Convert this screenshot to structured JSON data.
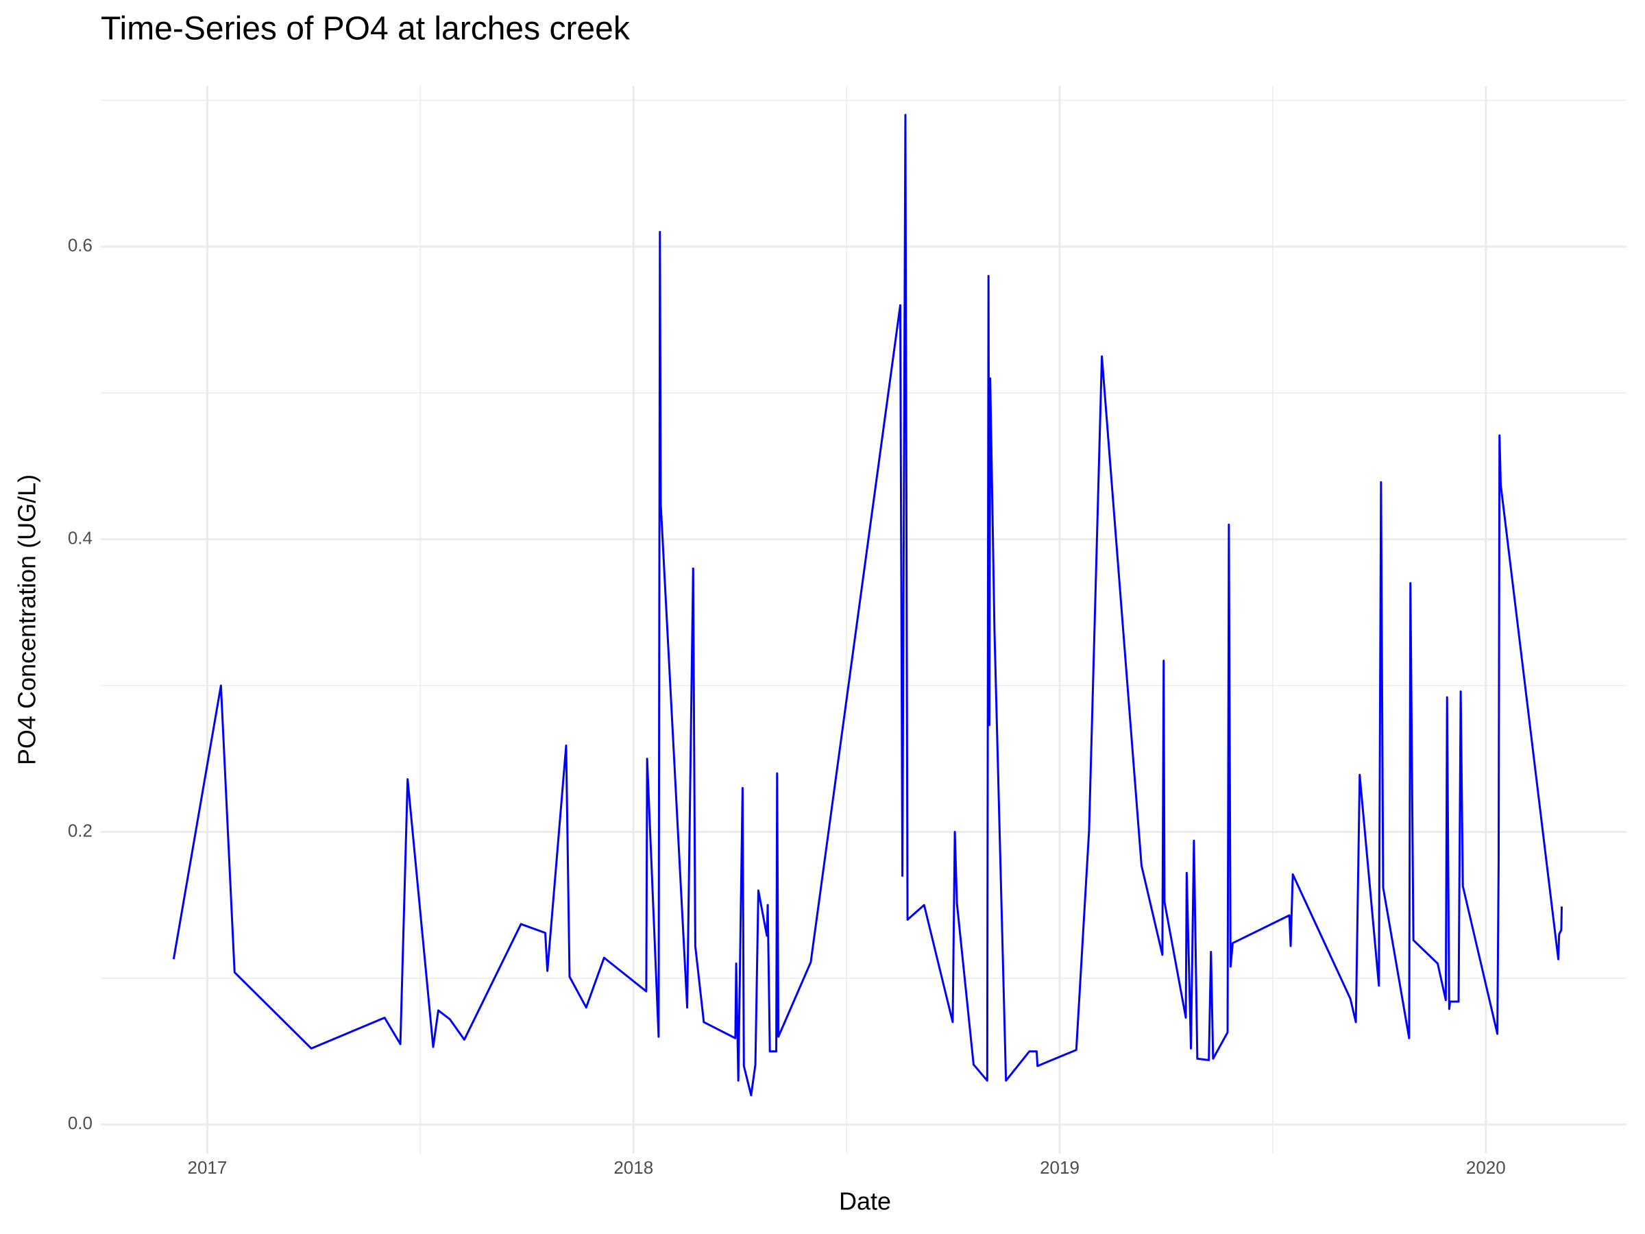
{
  "chart_data": {
    "type": "line",
    "title": "Time-Series of PO4 at larches creek",
    "x_label": "Date",
    "y_label": "PO4 Concentration (UG/L)",
    "series": [
      {
        "color": "#0000ff",
        "x": [
          2016.921,
          2017.032,
          2017.064,
          2017.244,
          2017.416,
          2017.453,
          2017.47,
          2017.53,
          2017.542,
          2017.569,
          2017.603,
          2017.736,
          2017.793,
          2017.798,
          2017.842,
          2017.85,
          2017.889,
          2017.931,
          2018.03,
          2018.032,
          2018.059,
          2018.062,
          2018.064,
          2018.126,
          2018.14,
          2018.145,
          2018.165,
          2018.239,
          2018.241,
          2018.246,
          2018.256,
          2018.259,
          2018.276,
          2018.286,
          2018.293,
          2018.313,
          2018.315,
          2018.32,
          2018.335,
          2018.337,
          2018.34,
          2018.416,
          2018.626,
          2018.631,
          2018.638,
          2018.643,
          2018.682,
          2018.749,
          2018.754,
          2018.759,
          2018.798,
          2018.83,
          2018.833,
          2018.835,
          2018.837,
          2018.847,
          2018.874,
          2018.929,
          2018.946,
          2018.948,
          2019.039,
          2019.069,
          2019.099,
          2019.192,
          2019.241,
          2019.244,
          2019.246,
          2019.296,
          2019.298,
          2019.308,
          2019.315,
          2019.323,
          2019.35,
          2019.355,
          2019.36,
          2019.394,
          2019.397,
          2019.401,
          2019.406,
          2019.539,
          2019.542,
          2019.547,
          2019.682,
          2019.695,
          2019.704,
          2019.749,
          2019.754,
          2019.759,
          2019.82,
          2019.823,
          2019.83,
          2019.887,
          2019.906,
          2019.909,
          2019.914,
          2019.916,
          2019.936,
          2019.941,
          2019.946,
          2020.027,
          2020.03,
          2020.032,
          2020.035,
          2020.17,
          2020.172,
          2020.177,
          2020.178
        ],
        "values": [
          0.113,
          0.3,
          0.104,
          0.052,
          0.073,
          0.055,
          0.236,
          0.053,
          0.078,
          0.072,
          0.058,
          0.137,
          0.131,
          0.105,
          0.259,
          0.101,
          0.08,
          0.114,
          0.091,
          0.25,
          0.06,
          0.61,
          0.424,
          0.08,
          0.38,
          0.122,
          0.07,
          0.059,
          0.11,
          0.03,
          0.23,
          0.04,
          0.02,
          0.041,
          0.16,
          0.129,
          0.15,
          0.05,
          0.05,
          0.24,
          0.06,
          0.111,
          0.56,
          0.17,
          0.69,
          0.14,
          0.15,
          0.07,
          0.2,
          0.151,
          0.041,
          0.03,
          0.58,
          0.273,
          0.51,
          0.338,
          0.03,
          0.05,
          0.05,
          0.04,
          0.051,
          0.201,
          0.525,
          0.177,
          0.116,
          0.317,
          0.152,
          0.073,
          0.172,
          0.052,
          0.194,
          0.045,
          0.044,
          0.118,
          0.045,
          0.063,
          0.41,
          0.108,
          0.124,
          0.143,
          0.122,
          0.171,
          0.086,
          0.07,
          0.239,
          0.095,
          0.439,
          0.162,
          0.059,
          0.37,
          0.126,
          0.11,
          0.085,
          0.292,
          0.079,
          0.084,
          0.084,
          0.296,
          0.163,
          0.062,
          0.18,
          0.471,
          0.437,
          0.113,
          0.13,
          0.133,
          0.149
        ]
      }
    ],
    "xlim": [
      2016.75,
      2020.33
    ],
    "xticks": [
      2017,
      2018,
      2019,
      2020
    ],
    "ylim": [
      -0.02,
      0.71
    ],
    "yticks": [
      {
        "value": 0,
        "label": "0.0"
      },
      0.2,
      0.4,
      0.6
    ],
    "grid": true
  }
}
